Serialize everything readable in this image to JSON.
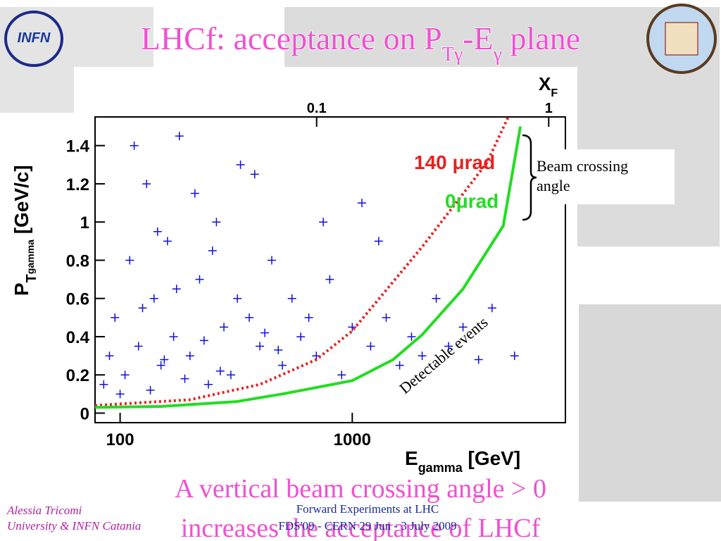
{
  "logo": "INFN",
  "chart_data": {
    "type": "scatter",
    "title": [
      "LHCf: acceptance on P",
      "Tγ",
      "-E",
      "γ",
      " plane"
    ],
    "x_label": [
      "E",
      "gamma",
      " [GeV]"
    ],
    "y_label": [
      "P",
      "T",
      "gamma",
      " [GeV/c]"
    ],
    "x2_label": [
      "X",
      "F"
    ],
    "log_x": true,
    "xlim": [
      78,
      8280
    ],
    "xticks": [
      100,
      1000
    ],
    "x2lim": [
      0.0111,
      1.18
    ],
    "x2ticks": [
      0.1,
      1
    ],
    "ylim": [
      -0.05,
      1.55
    ],
    "yticks": [
      0,
      0.2,
      0.4,
      0.6,
      0.8,
      1,
      1.2,
      1.4
    ],
    "points": {
      "color": "#1010e0",
      "x": [
        90,
        95,
        105,
        110,
        120,
        130,
        140,
        150,
        160,
        170,
        180,
        200,
        220,
        240,
        260,
        280,
        300,
        330,
        360,
        400,
        450,
        500,
        550,
        600,
        700,
        800,
        900,
        1000,
        1100,
        1200,
        1400,
        1600,
        1800,
        2000,
        2300,
        2600,
        3000,
        3500,
        4000,
        5000,
        85,
        100,
        115,
        125,
        135,
        145,
        155,
        175,
        190,
        210,
        230,
        250,
        270,
        320,
        380,
        420,
        480,
        650,
        750,
        1300
      ],
      "y": [
        0.3,
        0.5,
        0.2,
        0.8,
        0.35,
        1.2,
        0.6,
        0.25,
        0.9,
        0.4,
        1.45,
        0.3,
        0.7,
        0.15,
        1.0,
        0.45,
        0.2,
        1.3,
        0.5,
        0.35,
        0.8,
        0.25,
        0.6,
        0.4,
        0.3,
        0.7,
        0.2,
        0.45,
        1.1,
        0.35,
        0.5,
        0.25,
        0.4,
        0.3,
        0.6,
        0.35,
        0.45,
        0.28,
        0.55,
        0.3,
        0.15,
        0.1,
        1.4,
        0.55,
        0.12,
        0.95,
        0.28,
        0.65,
        0.18,
        1.15,
        0.38,
        0.85,
        0.22,
        0.6,
        1.25,
        0.42,
        0.33,
        0.5,
        1.0,
        0.9
      ]
    },
    "series": [
      {
        "name": "140 μrad",
        "color": "#e82020",
        "dashed": true,
        "x": [
          78,
          200,
          400,
          700,
          1000,
          2000,
          3800,
          4700
        ],
        "values": [
          0.04,
          0.07,
          0.15,
          0.28,
          0.43,
          0.87,
          1.31,
          1.55
        ]
      },
      {
        "name": "0μrad",
        "color": "#22dd22",
        "dashed": false,
        "x": [
          78,
          150,
          316,
          500,
          1000,
          1500,
          2000,
          3000,
          4470,
          5300
        ],
        "values": [
          0.03,
          0.035,
          0.06,
          0.1,
          0.17,
          0.28,
          0.41,
          0.65,
          0.98,
          1.5
        ]
      }
    ],
    "annotations": [
      "Beam crossing angle",
      "Detectable events"
    ],
    "conclusion": [
      "A vertical beam crossing angle > 0",
      "increases the acceptance of LHCf"
    ]
  },
  "footer": {
    "author": "Alessia Tricomi",
    "affiliation": "University & INFN Catania",
    "event": "Forward Experiments at LHC",
    "venue": "FDS'09 - CERN 29 Jun - 3 July 2009"
  }
}
